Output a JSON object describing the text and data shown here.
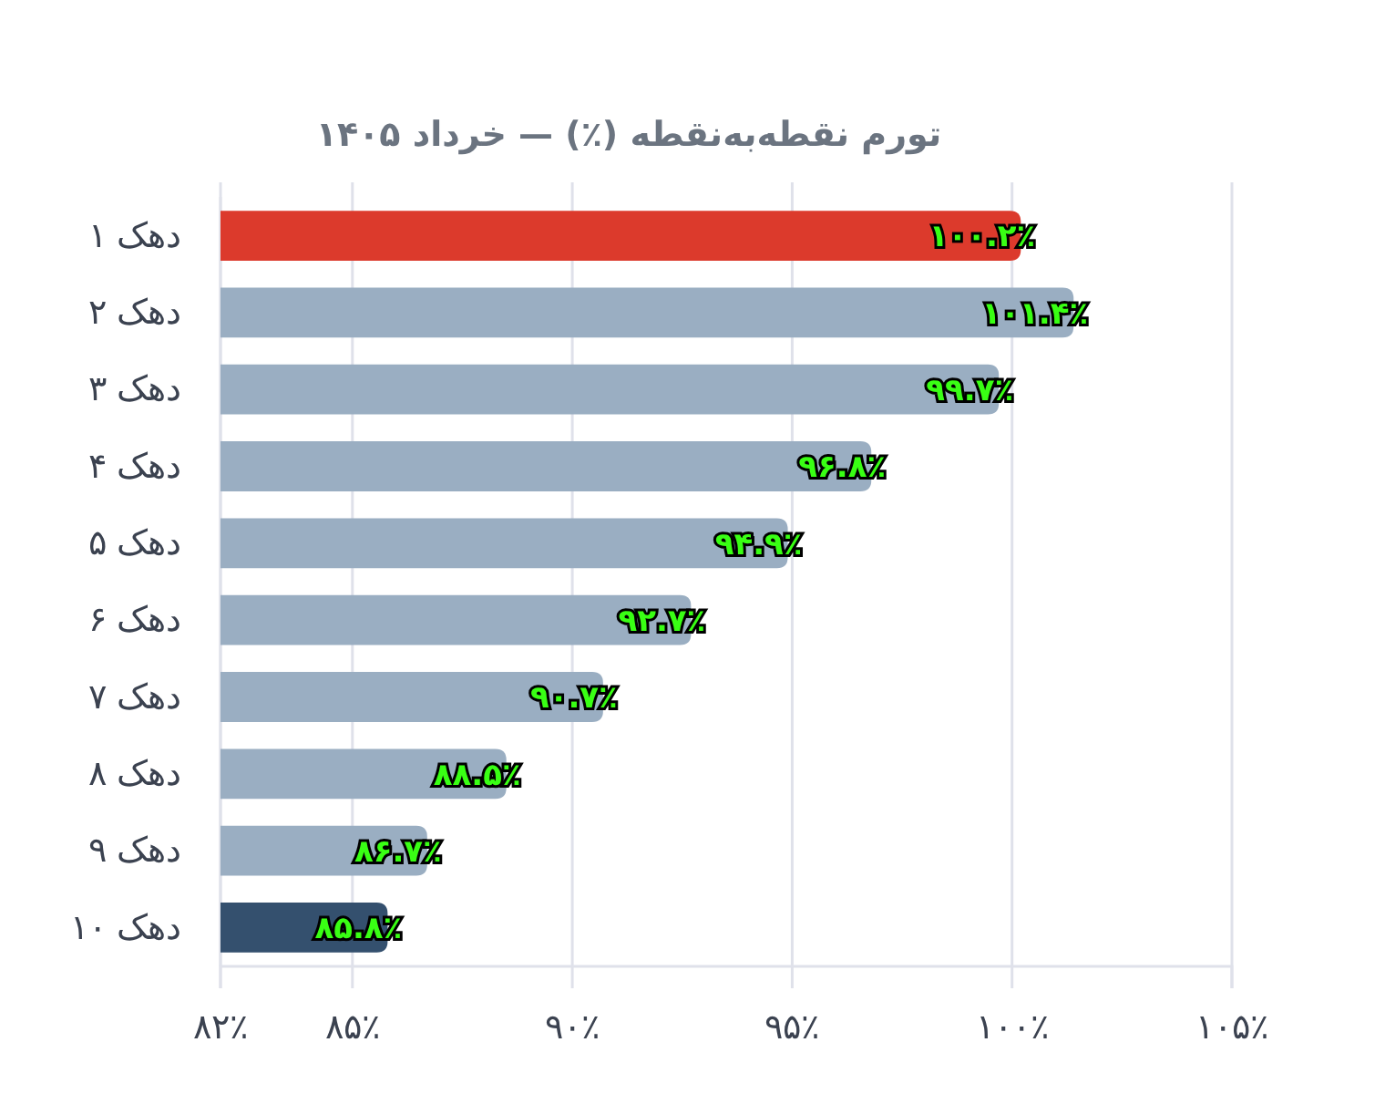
{
  "chart_data": {
    "type": "bar",
    "orientation": "horizontal",
    "title": "تورم نقطه‌به‌نقطه (٪) — خرداد ۱۴۰۵",
    "categories": [
      "دهک ۱",
      "دهک ۲",
      "دهک ۳",
      "دهک ۴",
      "دهک ۵",
      "دهک ۶",
      "دهک ۷",
      "دهک ۸",
      "دهک ۹",
      "دهک ۱۰"
    ],
    "values": [
      100.2,
      101.4,
      99.7,
      96.8,
      94.9,
      92.7,
      90.7,
      88.5,
      86.7,
      85.8
    ],
    "colors": [
      "#dc3a2c",
      "#9aaec2",
      "#9aaec2",
      "#9aaec2",
      "#9aaec2",
      "#9aaec2",
      "#9aaec2",
      "#9aaec2",
      "#9aaec2",
      "#34506e"
    ],
    "value_labels": [
      "۱۰۰.۲٪",
      "۱۰۱.۴٪",
      "۹۹.۷٪",
      "۹۶.۸٪",
      "۹۴.۹٪",
      "۹۲.۷٪",
      "۹۰.۷٪",
      "۸۸.۵٪",
      "۸۶.۷٪",
      "۸۵.۸٪"
    ],
    "xlim": [
      82,
      105
    ],
    "xticks": [
      {
        "value": 82,
        "label": "۸۲٪"
      },
      {
        "value": 85,
        "label": "۸۵٪"
      },
      {
        "value": 90,
        "label": "۹۰٪"
      },
      {
        "value": 95,
        "label": "۹۵٪"
      },
      {
        "value": 100,
        "label": "۱۰۰٪"
      },
      {
        "value": 105,
        "label": "۱۰۵٪"
      }
    ],
    "grid": "x"
  }
}
